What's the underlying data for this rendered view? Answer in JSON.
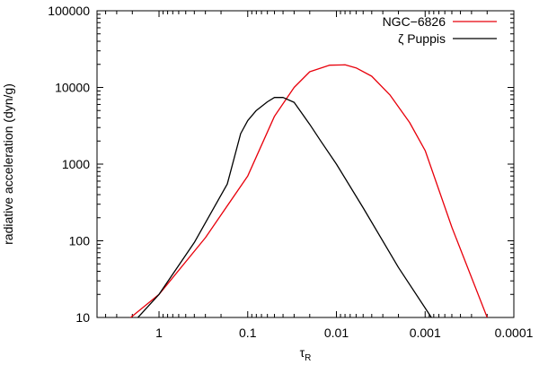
{
  "chart_data": {
    "type": "line",
    "title": "",
    "xlabel": "τ",
    "xlabel_subscript": "R",
    "ylabel": "radiative acceleration (dyn/g)",
    "xscale": "log",
    "yscale": "log",
    "x_reversed": true,
    "xlim": [
      5,
      0.0001
    ],
    "ylim": [
      10,
      100000
    ],
    "grid": false,
    "legend_position": "top-right",
    "x_ticks": [
      {
        "value": 1,
        "label": "1"
      },
      {
        "value": 0.1,
        "label": "0.1"
      },
      {
        "value": 0.01,
        "label": "0.01"
      },
      {
        "value": 0.001,
        "label": "0.001"
      },
      {
        "value": 0.0001,
        "label": "0.0001"
      }
    ],
    "y_ticks": [
      {
        "value": 10,
        "label": "10"
      },
      {
        "value": 100,
        "label": "100"
      },
      {
        "value": 1000,
        "label": "1000"
      },
      {
        "value": 10000,
        "label": "10000"
      },
      {
        "value": 100000,
        "label": "100000"
      }
    ],
    "series": [
      {
        "name": "NGC−6826",
        "color": "#e8000b",
        "x": [
          2.2,
          1.0,
          0.3,
          0.1,
          0.05,
          0.03,
          0.02,
          0.012,
          0.008,
          0.006,
          0.004,
          0.0025,
          0.0015,
          0.001,
          0.0005,
          0.0002
        ],
        "y": [
          9.5,
          20,
          110,
          700,
          4200,
          10000,
          16000,
          19500,
          19700,
          18000,
          14000,
          8000,
          3500,
          1500,
          150,
          10
        ]
      },
      {
        "name": "ζ Puppis",
        "color": "#000000",
        "x": [
          1.8,
          1.0,
          0.4,
          0.17,
          0.12,
          0.1,
          0.08,
          0.06,
          0.05,
          0.04,
          0.03,
          0.02,
          0.015,
          0.01,
          0.005,
          0.002,
          0.00085
        ],
        "y": [
          9.5,
          20,
          95,
          550,
          2500,
          3700,
          5000,
          6500,
          7400,
          7400,
          6400,
          3300,
          2000,
          1000,
          270,
          45,
          10
        ]
      }
    ]
  }
}
